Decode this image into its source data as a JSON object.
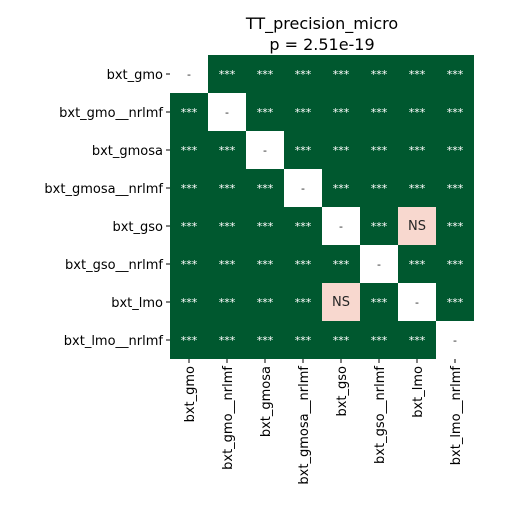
{
  "chart_data": {
    "type": "heatmap",
    "title": "TT_precision_micro",
    "subtitle": "p = 2.51e-19",
    "row_labels": [
      "bxt_gmo",
      "bxt_gmo__nrlmf",
      "bxt_gmosa",
      "bxt_gmosa__nrlmf",
      "bxt_gso",
      "bxt_gso__nrlmf",
      "bxt_lmo",
      "bxt_lmo__nrlmf"
    ],
    "col_labels": [
      "bxt_gmo",
      "bxt_gmo__nrlmf",
      "bxt_gmosa",
      "bxt_gmosa__nrlmf",
      "bxt_gso",
      "bxt_gso__nrlmf",
      "bxt_lmo",
      "bxt_lmo__nrlmf"
    ],
    "cells": [
      [
        "-",
        "***",
        "***",
        "***",
        "***",
        "***",
        "***",
        "***"
      ],
      [
        "***",
        "-",
        "***",
        "***",
        "***",
        "***",
        "***",
        "***"
      ],
      [
        "***",
        "***",
        "-",
        "***",
        "***",
        "***",
        "***",
        "***"
      ],
      [
        "***",
        "***",
        "***",
        "-",
        "***",
        "***",
        "***",
        "***"
      ],
      [
        "***",
        "***",
        "***",
        "***",
        "-",
        "***",
        "NS",
        "***"
      ],
      [
        "***",
        "***",
        "***",
        "***",
        "***",
        "-",
        "***",
        "***"
      ],
      [
        "***",
        "***",
        "***",
        "***",
        "NS",
        "***",
        "-",
        "***"
      ],
      [
        "***",
        "***",
        "***",
        "***",
        "***",
        "***",
        "***",
        "-"
      ]
    ],
    "colors": {
      "significant": "#00582f",
      "not_significant": "#f8d8cf",
      "diagonal": "#ffffff",
      "significant_text": "#ffffff",
      "other_text": "#262626"
    },
    "grid": false,
    "legend": "none"
  }
}
